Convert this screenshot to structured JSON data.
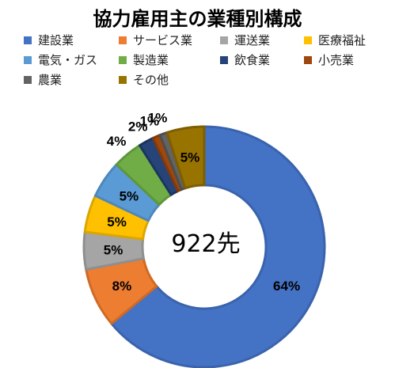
{
  "chart_data": {
    "type": "pie",
    "title": "協力雇用主の業種別構成",
    "center_label": "922先",
    "categories": [
      "建設業",
      "サービス業",
      "運送業",
      "医療福祉",
      "電気・ガス",
      "製造業",
      "飲食業",
      "小売業",
      "農業",
      "その他"
    ],
    "values": [
      64,
      8,
      5,
      5,
      5,
      4,
      2,
      1,
      1,
      5
    ],
    "data_labels": [
      "64%",
      "8%",
      "5%",
      "5%",
      "5%",
      "4%",
      "2%",
      "1%",
      "1%",
      "5%"
    ],
    "colors": [
      "#4472C4",
      "#ED7D31",
      "#A5A5A5",
      "#FFC000",
      "#5B9BD5",
      "#70AD47",
      "#264478",
      "#9E480E",
      "#636363",
      "#997300"
    ],
    "legend_position": "top",
    "donut": true
  }
}
